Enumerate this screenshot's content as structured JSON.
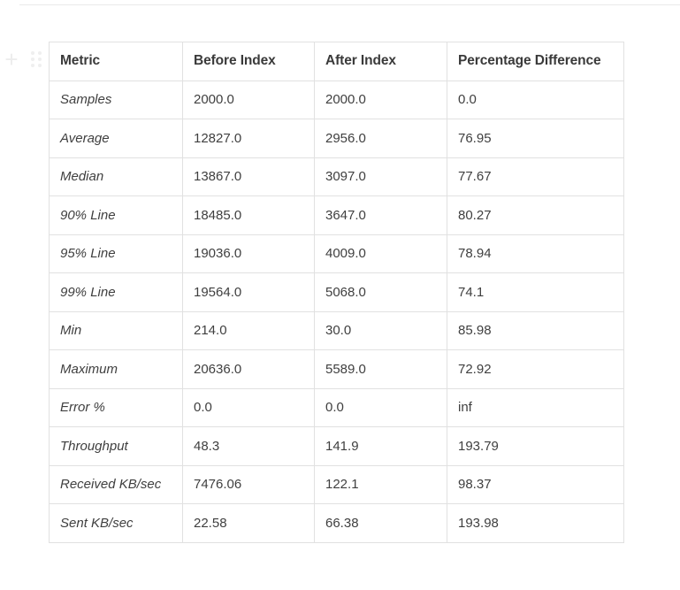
{
  "page": {
    "background": "#ffffff",
    "top_divider_color": "#e9e9e9"
  },
  "block_controls": {
    "add_icon_glyph": "+",
    "add_icon_name": "plus-icon",
    "drag_icon_name": "drag-handle-icon",
    "icon_color": "#ededed"
  },
  "table": {
    "headers": [
      "Metric",
      "Before Index",
      "After Index",
      "Percentage Difference"
    ],
    "rows": [
      [
        "Samples",
        "2000.0",
        "2000.0",
        "0.0"
      ],
      [
        "Average",
        "12827.0",
        "2956.0",
        "76.95"
      ],
      [
        "Median",
        "13867.0",
        "3097.0",
        "77.67"
      ],
      [
        "90% Line",
        "18485.0",
        "3647.0",
        "80.27"
      ],
      [
        "95% Line",
        "19036.0",
        "4009.0",
        "78.94"
      ],
      [
        "99% Line",
        "19564.0",
        "5068.0",
        "74.1"
      ],
      [
        "Min",
        "214.0",
        "30.0",
        "85.98"
      ],
      [
        "Maximum",
        "20636.0",
        "5589.0",
        "72.92"
      ],
      [
        "Error %",
        "0.0",
        "0.0",
        "inf"
      ],
      [
        "Throughput",
        "48.3",
        "141.9",
        "193.79"
      ],
      [
        "Received KB/sec",
        "7476.06",
        "122.1",
        "98.37"
      ],
      [
        "Sent KB/sec",
        "22.58",
        "66.38",
        "193.98"
      ]
    ],
    "colors": {
      "border": "#e1e1e1",
      "header_text": "#3a3a3a",
      "body_text": "#3f3f3f"
    }
  }
}
